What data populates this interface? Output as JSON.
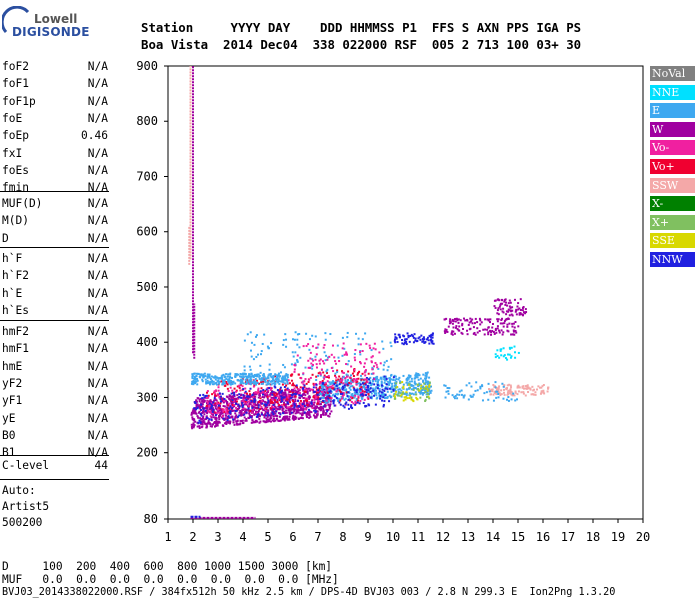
{
  "logo": {
    "top": "Lowell",
    "bottom": "DIGISONDE"
  },
  "header": {
    "line1": "Station     YYYY DAY    DDD HHMMSS P1  FFS S AXN PPS IGA PS",
    "line2": "Boa Vista  2014 Dec04  338 022000 RSF  005 2 713 100 03+ 30"
  },
  "params_group1": [
    {
      "label": "foF2",
      "value": "N/A"
    },
    {
      "label": "foF1",
      "value": "N/A"
    },
    {
      "label": "foF1p",
      "value": "N/A"
    },
    {
      "label": "foE",
      "value": "N/A"
    },
    {
      "label": "foEp",
      "value": "0.46"
    },
    {
      "label": "fxI",
      "value": "N/A"
    },
    {
      "label": "foEs",
      "value": "N/A"
    },
    {
      "label": "fmin",
      "value": "N/A"
    }
  ],
  "params_group2": [
    {
      "label": "MUF(D)",
      "value": "N/A"
    },
    {
      "label": "M(D)",
      "value": "N/A"
    },
    {
      "label": "D",
      "value": "N/A"
    }
  ],
  "params_group3": [
    {
      "label": "h`F",
      "value": "N/A"
    },
    {
      "label": "h`F2",
      "value": "N/A"
    },
    {
      "label": "h`E",
      "value": "N/A"
    },
    {
      "label": "h`Es",
      "value": "N/A"
    }
  ],
  "params_group4": [
    {
      "label": "hmF2",
      "value": "N/A"
    },
    {
      "label": "hmF1",
      "value": "N/A"
    },
    {
      "label": "hmE",
      "value": "N/A"
    },
    {
      "label": "yF2",
      "value": "N/A"
    },
    {
      "label": "yF1",
      "value": "N/A"
    },
    {
      "label": "yE",
      "value": "N/A"
    },
    {
      "label": "B0",
      "value": "N/A"
    },
    {
      "label": "B1",
      "value": "N/A"
    }
  ],
  "clevel": {
    "label": "C-level",
    "value": "44"
  },
  "auto": {
    "line1": "Auto:",
    "line2": "Artist5",
    "line3": "500200"
  },
  "legend": [
    {
      "label": "NoVal",
      "color": "#808080"
    },
    {
      "label": "NNE",
      "color": "#00e0ff"
    },
    {
      "label": "E",
      "color": "#3ea8f0"
    },
    {
      "label": "W",
      "color": "#a000a0"
    },
    {
      "label": "Vo-",
      "color": "#f020a0"
    },
    {
      "label": "Vo+",
      "color": "#f00030"
    },
    {
      "label": "SSW",
      "color": "#f4a8a8"
    },
    {
      "label": "X-",
      "color": "#008000"
    },
    {
      "label": "X+",
      "color": "#80c060"
    },
    {
      "label": "SSE",
      "color": "#d8d800"
    },
    {
      "label": "NNW",
      "color": "#2020e0"
    }
  ],
  "bottom_table": {
    "row1": "D     100  200  400  600  800 1000 1500 3000 [km]",
    "row2": "MUF   0.0  0.0  0.0  0.0  0.0  0.0  0.0  0.0 [MHz]"
  },
  "footer": "BVJ03_2014338022000.RSF / 384fx512h 50 kHz 2.5 km / DPS-4D BVJ03 003 / 2.8 N 299.3 E  Ion2Png 1.3.20",
  "chart_data": {
    "type": "scatter",
    "title": "",
    "xlabel": "",
    "ylabel": "",
    "xlim": [
      1,
      20
    ],
    "ylim": [
      80,
      900
    ],
    "xticks": [
      1,
      2,
      3,
      4,
      5,
      6,
      7,
      8,
      9,
      10,
      11,
      12,
      13,
      14,
      15,
      16,
      17,
      18,
      19,
      20
    ],
    "yticks": [
      80,
      200,
      300,
      400,
      500,
      600,
      700,
      800,
      900
    ],
    "grid": false,
    "legend_placement": "right",
    "clusters": [
      {
        "name": "F-trace-main",
        "color": "#a000a0",
        "x": [
          1.9,
          7.5
        ],
        "y": [
          245,
          300
        ],
        "density": 1100
      },
      {
        "name": "F-trace-mid",
        "color": "#3ea8f0",
        "x": [
          7,
          11.5
        ],
        "y": [
          290,
          330
        ],
        "density": 500
      },
      {
        "name": "F-trace-red",
        "color": "#f00030",
        "x": [
          2.5,
          9
        ],
        "y": [
          270,
          330
        ],
        "density": 260
      },
      {
        "name": "F-trace-pink",
        "color": "#f020a0",
        "x": [
          2.5,
          9
        ],
        "y": [
          265,
          320
        ],
        "density": 220
      },
      {
        "name": "F-trace-blue",
        "color": "#2020e0",
        "x": [
          2,
          10
        ],
        "y": [
          255,
          310
        ],
        "density": 280
      },
      {
        "name": "E-band-cyan",
        "color": "#3ea8f0",
        "x": [
          1.9,
          5.8
        ],
        "y": [
          325,
          345
        ],
        "density": 300
      },
      {
        "name": "spread-upper",
        "color": "#3ea8f0",
        "x": [
          4,
          10
        ],
        "y": [
          330,
          420
        ],
        "density": 140
      },
      {
        "name": "spread-upper-red",
        "color": "#f020a0",
        "x": [
          6,
          9.5
        ],
        "y": [
          330,
          400
        ],
        "density": 100
      },
      {
        "name": "F-high-NNW",
        "color": "#2020e0",
        "x": [
          10,
          11.6
        ],
        "y": [
          398,
          418
        ],
        "density": 70
      },
      {
        "name": "F-high-purple",
        "color": "#a000a0",
        "x": [
          12,
          15
        ],
        "y": [
          415,
          445
        ],
        "density": 140
      },
      {
        "name": "F-high-purple2",
        "color": "#a000a0",
        "x": [
          14,
          15.3
        ],
        "y": [
          450,
          480
        ],
        "density": 70
      },
      {
        "name": "SSW-band",
        "color": "#f4a8a8",
        "x": [
          13.8,
          16.2
        ],
        "y": [
          305,
          325
        ],
        "density": 110
      },
      {
        "name": "SSE-dots",
        "color": "#d8d800",
        "x": [
          10,
          11.5
        ],
        "y": [
          295,
          330
        ],
        "density": 40
      },
      {
        "name": "X+-dots",
        "color": "#80c060",
        "x": [
          10,
          11.5
        ],
        "y": [
          295,
          330
        ],
        "density": 30
      },
      {
        "name": "E-right",
        "color": "#3ea8f0",
        "x": [
          12,
          15
        ],
        "y": [
          295,
          330
        ],
        "density": 60
      },
      {
        "name": "NNE-right",
        "color": "#00e0ff",
        "x": [
          14,
          15
        ],
        "y": [
          370,
          395
        ],
        "density": 25
      }
    ],
    "lines": [
      {
        "name": "spike-pink",
        "color": "#f4a8a8",
        "x": 1.9,
        "y": [
          550,
          900
        ]
      },
      {
        "name": "spike-pink-low",
        "color": "#f4a8a8",
        "x": 1.85,
        "y": [
          540,
          610
        ]
      },
      {
        "name": "spike-purple",
        "color": "#a000a0",
        "x": 2.0,
        "y": [
          380,
          900
        ]
      },
      {
        "name": "spike-purple-low",
        "color": "#a000a0",
        "x": 2.05,
        "y": [
          370,
          470
        ]
      },
      {
        "name": "bottom-line",
        "color": "#a000a0",
        "x": [
          1.9,
          4.5
        ],
        "y": 82
      },
      {
        "name": "bottom-line-short",
        "color": "#2020e0",
        "x": [
          1.9,
          2.3
        ],
        "y": 84
      }
    ]
  }
}
